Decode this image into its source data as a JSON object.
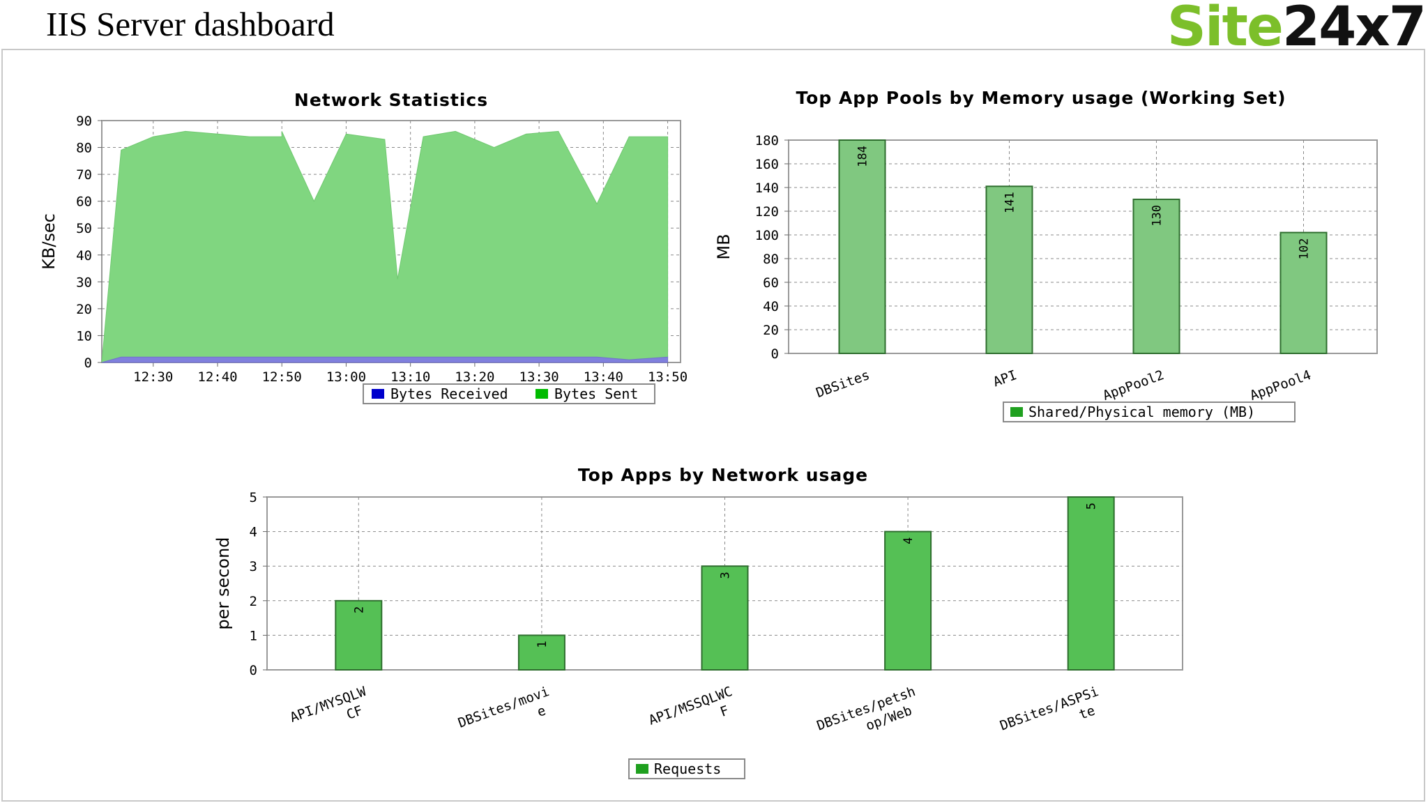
{
  "header": {
    "title": "IIS Server dashboard",
    "logo_part1": "Site",
    "logo_part2": "24x7"
  },
  "chart_data": [
    {
      "type": "area",
      "title": "Network Statistics",
      "ylabel": "KB/sec",
      "ylim": [
        0,
        90
      ],
      "yticks": [
        0,
        10,
        20,
        30,
        40,
        50,
        60,
        70,
        80,
        90
      ],
      "xlim": [
        "12:22",
        "13:52"
      ],
      "xtick_labels": [
        "12:30",
        "12:40",
        "12:50",
        "13:00",
        "13:10",
        "13:20",
        "13:30",
        "13:40",
        "13:50"
      ],
      "x": [
        "12:22",
        "12:25",
        "12:30",
        "12:35",
        "12:40",
        "12:45",
        "12:50",
        "12:50",
        "12:55",
        "13:00",
        "13:06",
        "13:08",
        "13:12",
        "13:17",
        "13:23",
        "13:28",
        "13:33",
        "13:39",
        "13:44",
        "13:50"
      ],
      "series": [
        {
          "name": "Bytes Received",
          "color": "#8080dd",
          "values": [
            0,
            2,
            2,
            2,
            2,
            2,
            2,
            2,
            2,
            2,
            2,
            2,
            2,
            2,
            2,
            2,
            2,
            2,
            1,
            2
          ]
        },
        {
          "name": "Bytes Sent",
          "color": "#80d680",
          "values": [
            0,
            79,
            84,
            86,
            85,
            84,
            84,
            86,
            60,
            85,
            83,
            31,
            84,
            86,
            80,
            85,
            86,
            59,
            84,
            84
          ]
        }
      ],
      "legend": [
        {
          "label": "Bytes Received",
          "color": "#0000cc"
        },
        {
          "label": "Bytes Sent",
          "color": "#00bb00"
        }
      ],
      "legend_position": "bottom",
      "grid": true
    },
    {
      "type": "bar",
      "title": "Top App Pools by Memory usage (Working Set)",
      "ylabel": "MB",
      "ylim": [
        0,
        180
      ],
      "yticks": [
        0,
        20,
        40,
        60,
        80,
        100,
        120,
        140,
        160,
        180
      ],
      "categories": [
        "DBSites",
        "API",
        "AppPool2",
        "AppPool4"
      ],
      "values": [
        184,
        141,
        130,
        102
      ],
      "bar_color": "#80c880",
      "legend": [
        {
          "label": "Shared/Physical memory (MB)",
          "color": "#1fa01f"
        }
      ],
      "legend_position": "bottom",
      "grid": true
    },
    {
      "type": "bar",
      "title": "Top Apps by Network usage",
      "ylabel": "per second",
      "ylim": [
        0,
        5
      ],
      "yticks": [
        0,
        1,
        2,
        3,
        4,
        5
      ],
      "categories": [
        [
          "API/MYSQLW",
          "CF"
        ],
        [
          "DBSites/movi",
          "e"
        ],
        [
          "API/MSSQLWC",
          "F"
        ],
        [
          "DBSites/petsh",
          "op/Web"
        ],
        [
          "DBSites/ASPSi",
          "te"
        ]
      ],
      "values": [
        2,
        1,
        3,
        4,
        5
      ],
      "bar_color": "#55c055",
      "legend": [
        {
          "label": "Requests",
          "color": "#1fa01f"
        }
      ],
      "legend_position": "bottom",
      "grid": true
    }
  ]
}
